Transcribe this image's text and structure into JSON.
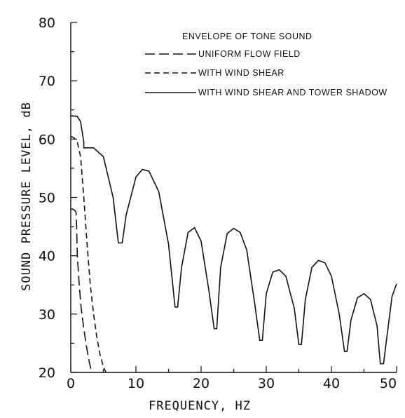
{
  "chart_data": {
    "type": "line",
    "title": "",
    "xlabel": "FREQUENCY, HZ",
    "ylabel": "SOUND PRESSURE LEVEL, dB",
    "xlim": [
      0,
      50
    ],
    "ylim": [
      20,
      80
    ],
    "x_ticks": [
      0,
      10,
      20,
      30,
      40,
      50
    ],
    "y_ticks": [
      20,
      30,
      40,
      50,
      60,
      70,
      80
    ],
    "grid": false,
    "legend_position": "top-right",
    "legend_title": "ENVELOPE OF TONE SOUND",
    "series": [
      {
        "name": "UNIFORM FLOW FIELD",
        "style": "long-dash",
        "points": [
          [
            0,
            48
          ],
          [
            0.3,
            48
          ],
          [
            0.6,
            47.8
          ],
          [
            0.8,
            47.5
          ],
          [
            0.9,
            45
          ],
          [
            1.0,
            40
          ],
          [
            1.3,
            35
          ],
          [
            1.6,
            31
          ],
          [
            2.0,
            27.5
          ],
          [
            2.4,
            24.5
          ],
          [
            2.8,
            22
          ],
          [
            3.2,
            20
          ]
        ]
      },
      {
        "name": "WITH WIND SHEAR",
        "style": "short-dash",
        "points": [
          [
            0,
            60.5
          ],
          [
            0.5,
            60.2
          ],
          [
            1.0,
            59.5
          ],
          [
            1.5,
            57
          ],
          [
            2.0,
            50
          ],
          [
            2.5,
            42
          ],
          [
            3.0,
            35
          ],
          [
            3.5,
            30
          ],
          [
            4.0,
            26
          ],
          [
            4.5,
            23
          ],
          [
            5.0,
            21
          ],
          [
            5.4,
            20
          ]
        ]
      },
      {
        "name": "WITH WIND SHEAR AND TOWER SHADOW",
        "style": "solid",
        "points": [
          [
            0,
            64
          ],
          [
            1,
            63.9
          ],
          [
            1.5,
            63
          ],
          [
            2,
            59.5
          ],
          [
            2,
            58.5
          ],
          [
            3.5,
            58.5
          ],
          [
            5,
            57
          ],
          [
            6.5,
            50
          ],
          [
            7.3,
            42.2
          ],
          [
            7.9,
            42.2
          ],
          [
            8.5,
            47
          ],
          [
            10,
            53.5
          ],
          [
            11,
            54.8
          ],
          [
            12,
            54.5
          ],
          [
            13.5,
            51
          ],
          [
            15,
            42
          ],
          [
            16,
            31.2
          ],
          [
            16.4,
            31.2
          ],
          [
            17,
            38
          ],
          [
            18,
            44
          ],
          [
            19,
            44.8
          ],
          [
            20,
            42.5
          ],
          [
            21.2,
            34
          ],
          [
            22,
            27.5
          ],
          [
            22.4,
            27.5
          ],
          [
            23,
            38
          ],
          [
            24,
            43.8
          ],
          [
            25,
            44.7
          ],
          [
            26,
            44
          ],
          [
            27,
            41
          ],
          [
            28.2,
            32
          ],
          [
            29,
            25.5
          ],
          [
            29.4,
            25.5
          ],
          [
            30,
            33.5
          ],
          [
            31,
            37.2
          ],
          [
            32,
            37.6
          ],
          [
            33,
            36.5
          ],
          [
            34.3,
            31
          ],
          [
            35,
            24.8
          ],
          [
            35.4,
            24.8
          ],
          [
            36,
            32.5
          ],
          [
            37,
            38
          ],
          [
            38,
            39.2
          ],
          [
            39,
            38.8
          ],
          [
            40,
            36.5
          ],
          [
            41.2,
            30
          ],
          [
            42,
            23.6
          ],
          [
            42.4,
            23.6
          ],
          [
            43,
            29
          ],
          [
            44,
            32.8
          ],
          [
            45,
            33.5
          ],
          [
            46,
            32.5
          ],
          [
            47,
            28
          ],
          [
            47.5,
            21.5
          ],
          [
            48,
            21.5
          ],
          [
            48.5,
            26
          ],
          [
            49.3,
            33
          ],
          [
            50,
            35.2
          ]
        ]
      }
    ]
  }
}
